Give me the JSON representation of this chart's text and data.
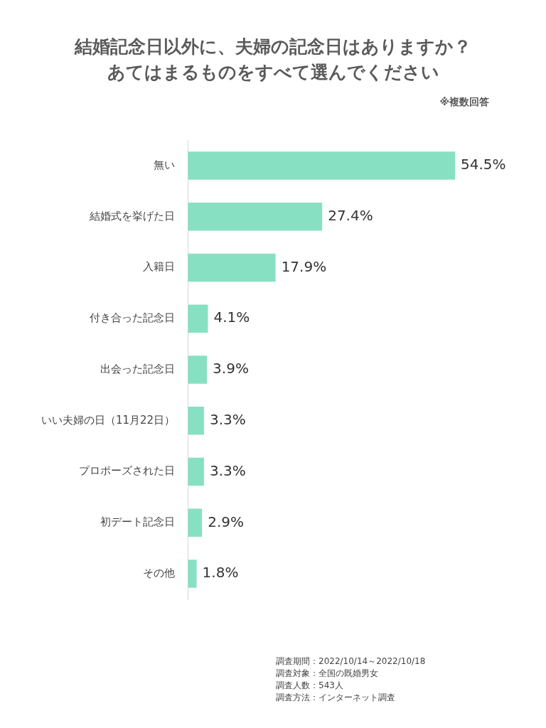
{
  "chart_data": {
    "type": "bar",
    "orientation": "horizontal",
    "title": "結婚記念日以外に、夫婦の記念日はありますか？あてはまるものをすべて選んでください",
    "categories": [
      "無い",
      "結婚式を挙げた日",
      "入籍日",
      "付き合った記念日",
      "出会った記念日",
      "いい夫婦の日（11月22日）",
      "プロポーズされた日",
      "初デート記念日",
      "その他"
    ],
    "values": [
      54.5,
      27.4,
      17.9,
      4.1,
      3.9,
      3.3,
      3.3,
      2.9,
      1.8
    ],
    "value_labels": [
      "54.5%",
      "27.4%",
      "17.9%",
      "4.1%",
      "3.9%",
      "3.3%",
      "3.3%",
      "2.9%",
      "1.8%"
    ],
    "color": "#88e0c2",
    "tick_labels": "y",
    "legend": false,
    "annotations": [
      "※複数回答",
      "調査期間：2022/10/14～2022/10/18",
      "調査対象：全国の既婚男女",
      "調査人数：543人",
      "調査方法：インターネット調査"
    ]
  }
}
